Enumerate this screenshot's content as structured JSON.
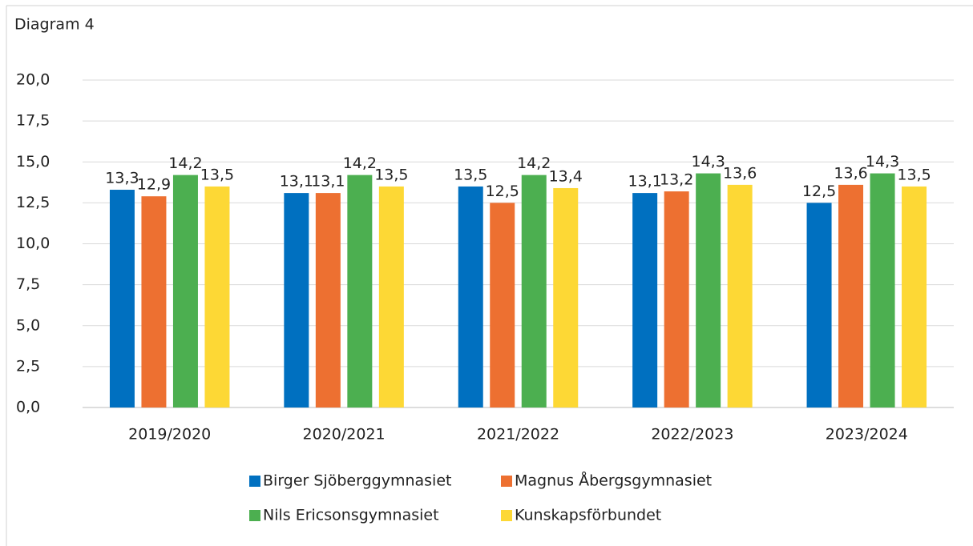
{
  "chart_data": {
    "type": "bar",
    "title": "Diagram 4",
    "categories": [
      "2019/2020",
      "2020/2021",
      "2021/2022",
      "2022/2023",
      "2023/2024"
    ],
    "series": [
      {
        "name": "Birger Sjöberggymnasiet",
        "color": "#0070c0",
        "values": [
          13.3,
          13.1,
          13.5,
          13.1,
          12.5
        ],
        "value_labels": [
          "13,3",
          "13,1",
          "13,5",
          "13,1",
          "12,5"
        ]
      },
      {
        "name": "Magnus Åbergsgymnasiet",
        "color": "#ed7031",
        "values": [
          12.9,
          13.1,
          12.5,
          13.2,
          13.6
        ],
        "value_labels": [
          "12,9",
          "13,1",
          "12,5",
          "13,2",
          "13,6"
        ]
      },
      {
        "name": "Nils Ericsonsgymnasiet",
        "color": "#4caf50",
        "values": [
          14.2,
          14.2,
          14.2,
          14.3,
          14.3
        ],
        "value_labels": [
          "14,2",
          "14,2",
          "14,2",
          "14,3",
          "14,3"
        ]
      },
      {
        "name": "Kunskapsförbundet",
        "color": "#fdd835",
        "values": [
          13.5,
          13.5,
          13.4,
          13.6,
          13.5
        ],
        "value_labels": [
          "13,5",
          "13,5",
          "13,4",
          "13,6",
          "13,5"
        ]
      }
    ],
    "ylim": [
      0,
      20
    ],
    "yticks": [
      {
        "value": 0,
        "label": "0,0"
      },
      {
        "value": 2.5,
        "label": "2,5"
      },
      {
        "value": 5,
        "label": "5,0"
      },
      {
        "value": 7.5,
        "label": "7,5"
      },
      {
        "value": 10,
        "label": "10,0"
      },
      {
        "value": 12.5,
        "label": "12,5"
      },
      {
        "value": 15,
        "label": "15,0"
      },
      {
        "value": 17.5,
        "label": "17,5"
      },
      {
        "value": 20,
        "label": "20,0"
      }
    ],
    "grid": true,
    "legend": "bottom"
  }
}
